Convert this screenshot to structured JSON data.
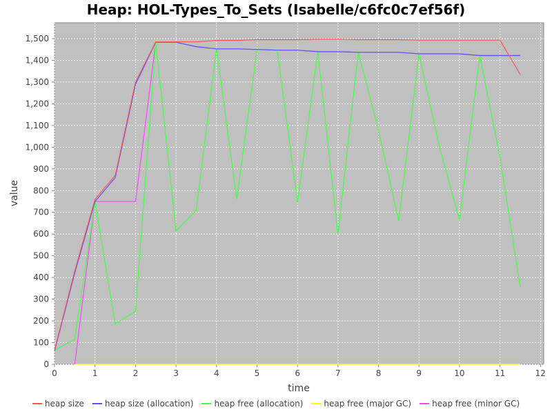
{
  "chart_data": {
    "type": "line",
    "title": "Heap: HOL-Types_To_Sets (Isabelle/c6fc0c7ef56f)",
    "xlabel": "time",
    "ylabel": "value",
    "xlim": [
      0,
      12.08
    ],
    "ylim": [
      0,
      1573
    ],
    "xticks": [
      "0",
      "1",
      "2",
      "3",
      "4",
      "5",
      "6",
      "7",
      "8",
      "9",
      "10",
      "11",
      "12"
    ],
    "yticks": [
      "0",
      "100",
      "200",
      "300",
      "400",
      "500",
      "600",
      "700",
      "800",
      "900",
      "1,000",
      "1,100",
      "1,200",
      "1,300",
      "1,400",
      "1,500"
    ],
    "grid": true,
    "legend_position": "bottom",
    "background": "#c0c0c0",
    "x": [
      0,
      0.5,
      1,
      1.5,
      2,
      2.5,
      3,
      3.5,
      4,
      4.5,
      5,
      5.5,
      6,
      6.5,
      7,
      7.5,
      8,
      8.5,
      9,
      9.5,
      10,
      10.5,
      11,
      11.5
    ],
    "series": [
      {
        "name": "heap free (major GC)",
        "color": "#ffff00",
        "values": [
          null,
          0,
          0,
          0,
          0,
          0,
          0,
          0,
          0,
          0,
          0,
          0,
          0,
          0,
          0,
          0,
          0,
          0,
          0,
          0,
          0,
          0,
          0,
          0
        ]
      },
      {
        "name": "heap free (minor GC)",
        "color": "#ff44ff",
        "values": [
          null,
          0,
          750,
          750,
          750,
          1483,
          1483,
          1463,
          1453,
          1453,
          1450,
          1447,
          1447,
          1440,
          1440,
          1437,
          1437,
          1437,
          1430,
          1430,
          1430,
          1422,
          1422,
          1422
        ]
      },
      {
        "name": "heap free (allocation)",
        "color": "#44ff44",
        "values": [
          65,
          115,
          750,
          185,
          245,
          1483,
          615,
          710,
          1453,
          760,
          1450,
          1447,
          745,
          1440,
          600,
          1437,
          1080,
          660,
          1430,
          1005,
          665,
          1422,
          955,
          355
        ]
      },
      {
        "name": "heap size (allocation)",
        "color": "#5555ff",
        "values": [
          60,
          420,
          750,
          860,
          1290,
          1483,
          1483,
          1463,
          1453,
          1453,
          1450,
          1447,
          1447,
          1440,
          1440,
          1437,
          1437,
          1437,
          1430,
          1430,
          1430,
          1422,
          1422,
          1422
        ]
      },
      {
        "name": "heap size",
        "color": "#ff5555",
        "values": [
          65,
          430,
          760,
          870,
          1300,
          1485,
          1485,
          1485,
          1492,
          1492,
          1495,
          1495,
          1495,
          1497,
          1497,
          1495,
          1495,
          1495,
          1493,
          1493,
          1493,
          1493,
          1493,
          1335
        ]
      }
    ],
    "legend_order": [
      4,
      3,
      2,
      0,
      1
    ]
  }
}
